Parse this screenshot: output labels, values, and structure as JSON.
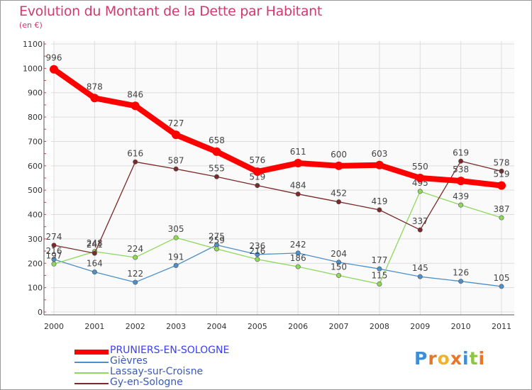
{
  "title": "Evolution du Montant de la Dette par Habitant",
  "unit": "(en €)",
  "logo_text": "Proxiti",
  "chart_data": {
    "type": "line",
    "title": "Evolution du Montant de la Dette par Habitant",
    "ylabel": "(en €)",
    "xlabel": "",
    "x": [
      "2000",
      "2001",
      "2002",
      "2003",
      "2004",
      "2005",
      "2006",
      "2007",
      "2008",
      "2009",
      "2010",
      "2011"
    ],
    "ylim": [
      0,
      1100
    ],
    "yticks": [
      0,
      100,
      200,
      300,
      400,
      500,
      600,
      700,
      800,
      900,
      1000,
      1100
    ],
    "grid": true,
    "legend_position": "bottom-left",
    "series": [
      {
        "name": "PRUNIERS-EN-SOLOGNE",
        "color": "#ff0000",
        "values": [
          996,
          878,
          846,
          727,
          658,
          576,
          611,
          600,
          603,
          550,
          538,
          519
        ]
      },
      {
        "name": "Gièvres",
        "color": "#4d8fc8",
        "values": [
          216,
          164,
          122,
          191,
          275,
          236,
          242,
          204,
          177,
          145,
          126,
          105
        ]
      },
      {
        "name": "Lassay-sur-Croisne",
        "color": "#8ed85a",
        "values": [
          197,
          248,
          224,
          305,
          259,
          216,
          186,
          150,
          115,
          495,
          439,
          387
        ]
      },
      {
        "name": "Gy-en-Sologne",
        "color": "#7a2a2a",
        "values": [
          274,
          241,
          616,
          587,
          555,
          519,
          484,
          452,
          419,
          337,
          619,
          578
        ]
      }
    ]
  }
}
